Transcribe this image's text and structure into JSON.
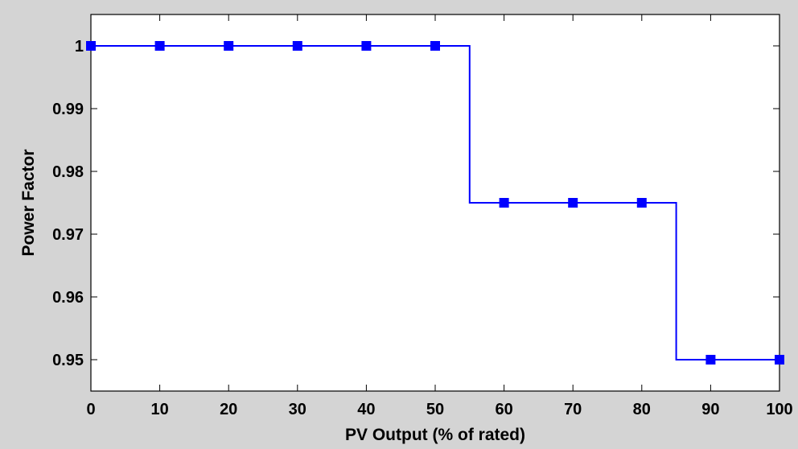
{
  "chart_data": {
    "type": "line",
    "step": true,
    "xlabel": "PV Output (% of rated)",
    "ylabel": "Power Factor",
    "xlim": [
      0,
      100
    ],
    "ylim": [
      0.945,
      1.005
    ],
    "grid": false,
    "x_ticks": [
      0,
      10,
      20,
      30,
      40,
      50,
      60,
      70,
      80,
      90,
      100
    ],
    "y_ticks": [
      0.95,
      0.96,
      0.97,
      0.98,
      0.99,
      1
    ],
    "x_tick_labels": [
      "0",
      "10",
      "20",
      "30",
      "40",
      "50",
      "60",
      "70",
      "80",
      "90",
      "100"
    ],
    "y_tick_labels": [
      "0.95",
      "0.96",
      "0.97",
      "0.98",
      "0.99",
      "1"
    ],
    "series": [
      {
        "marker": "square",
        "color": "#0000ff",
        "x": [
          0,
          10,
          20,
          30,
          40,
          50,
          60,
          70,
          80,
          90,
          100
        ],
        "y": [
          1,
          1,
          1,
          1,
          1,
          1,
          0.975,
          0.975,
          0.975,
          0.95,
          0.95
        ]
      }
    ],
    "step_line": {
      "x": [
        0,
        55,
        55,
        85,
        85,
        100
      ],
      "y": [
        1,
        1,
        0.975,
        0.975,
        0.95,
        0.95
      ]
    },
    "colors": {
      "background": "#d4d4d4",
      "plot_area": "#ffffff",
      "axes": "#000000"
    }
  }
}
